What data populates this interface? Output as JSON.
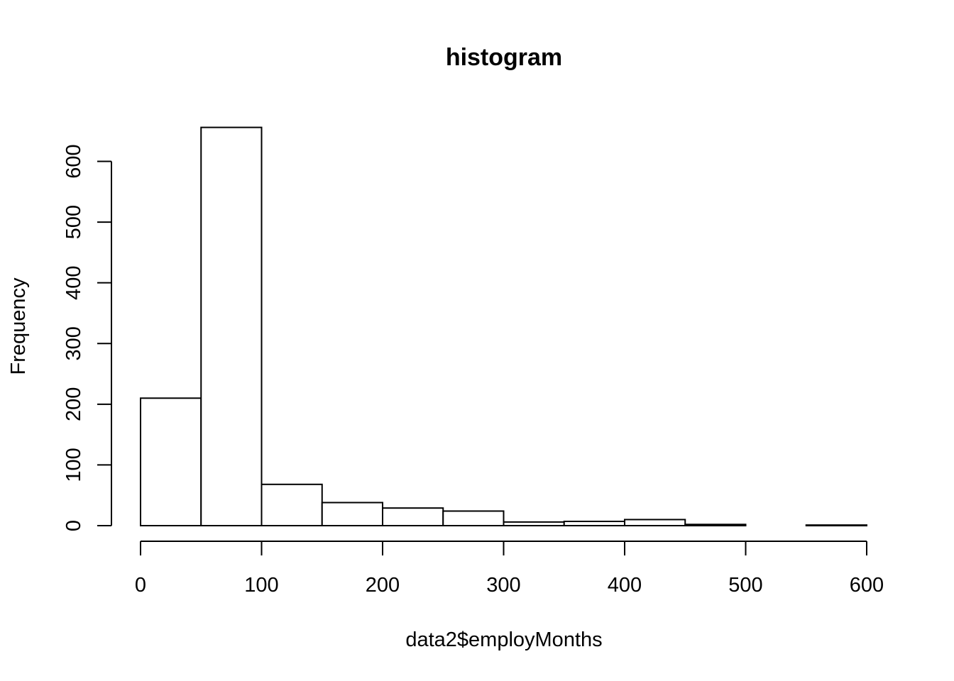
{
  "chart_data": {
    "type": "bar",
    "title": "histogram",
    "xlabel": "data2$employMonths",
    "ylabel": "Frequency",
    "bins": [
      {
        "from": 0,
        "to": 50,
        "count": 210
      },
      {
        "from": 50,
        "to": 100,
        "count": 656
      },
      {
        "from": 100,
        "to": 150,
        "count": 68
      },
      {
        "from": 150,
        "to": 200,
        "count": 38
      },
      {
        "from": 200,
        "to": 250,
        "count": 29
      },
      {
        "from": 250,
        "to": 300,
        "count": 24
      },
      {
        "from": 300,
        "to": 350,
        "count": 6
      },
      {
        "from": 350,
        "to": 400,
        "count": 7
      },
      {
        "from": 400,
        "to": 450,
        "count": 10
      },
      {
        "from": 450,
        "to": 500,
        "count": 2
      },
      {
        "from": 500,
        "to": 550,
        "count": 0
      },
      {
        "from": 550,
        "to": 600,
        "count": 1
      }
    ],
    "xlim": [
      0,
      600
    ],
    "ylim": [
      0,
      656
    ],
    "xticks": [
      0,
      100,
      200,
      300,
      400,
      500,
      600
    ],
    "yticks": [
      0,
      100,
      200,
      300,
      400,
      500,
      600
    ],
    "grid": false
  }
}
